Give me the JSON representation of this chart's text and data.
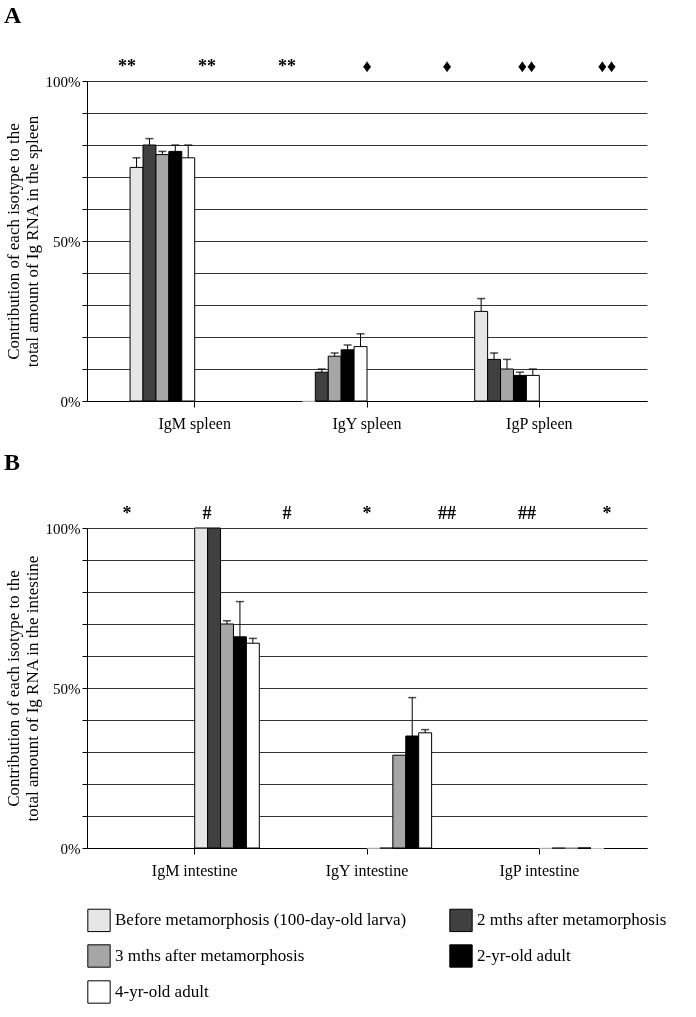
{
  "chart_data": [
    {
      "type": "bar",
      "title": "A",
      "ylabel": "Contribution of each isotype  to the total amount of Ig RNA in the spleen",
      "categories": [
        "IgM spleen",
        "IgY spleen",
        "IgP spleen"
      ],
      "series": [
        {
          "color": "#e6e6e6",
          "values": [
            73,
            0,
            28
          ],
          "errors": [
            3,
            null,
            4
          ]
        },
        {
          "color": "#404040",
          "values": [
            80,
            9,
            13
          ],
          "errors": [
            2,
            1,
            2
          ]
        },
        {
          "color": "#a6a6a6",
          "values": [
            77,
            14,
            10
          ],
          "errors": [
            1,
            1,
            3
          ]
        },
        {
          "color": "#000000",
          "values": [
            78,
            16,
            8
          ],
          "errors": [
            2,
            1.5,
            1
          ]
        },
        {
          "color": "#ffffff",
          "values": [
            76,
            17,
            8
          ],
          "errors": [
            4,
            4,
            2
          ]
        }
      ],
      "ylim": [
        0,
        100
      ],
      "yticks": [
        {
          "value": 0,
          "label": "0%"
        },
        {
          "value": 10,
          "label": null
        },
        {
          "value": 20,
          "label": null
        },
        {
          "value": 30,
          "label": null
        },
        {
          "value": 40,
          "label": null
        },
        {
          "value": 50,
          "label": "50%"
        },
        {
          "value": 60,
          "label": null
        },
        {
          "value": 70,
          "label": null
        },
        {
          "value": 80,
          "label": null
        },
        {
          "value": 90,
          "label": null
        },
        {
          "value": 100,
          "label": "100%"
        }
      ],
      "grid": "y",
      "annotations": [
        "**",
        "**",
        "**",
        "♦",
        "♦",
        "♦♦",
        "♦♦"
      ]
    },
    {
      "type": "bar",
      "title": "B",
      "ylabel": "Contribution of each isotype  to the total amount of Ig RNA in the intestine",
      "categories": [
        "IgM intestine",
        "IgY intestine",
        "IgP intestine"
      ],
      "series": [
        {
          "name": "Before metamorphosis (100-day-old larva)",
          "color": "#e6e6e6",
          "values": [
            100,
            0,
            0
          ]
        },
        {
          "name": "2 mths after metamorphosis",
          "color": "#404040",
          "values": [
            100,
            0,
            0
          ]
        },
        {
          "name": "3 mths after metamorphosis",
          "color": "#a6a6a6",
          "values": [
            70,
            29,
            0
          ],
          "errors": [
            1,
            null,
            null
          ]
        },
        {
          "name": "2-yr-old adult",
          "color": "#000000",
          "values": [
            66,
            35,
            0
          ],
          "errors": [
            11,
            12,
            null
          ]
        },
        {
          "name": "4-yr-old adult",
          "color": "#ffffff",
          "values": [
            64,
            36,
            0
          ],
          "errors": [
            1.5,
            1,
            null
          ]
        }
      ],
      "ylim": [
        0,
        100
      ],
      "yticks": [
        {
          "value": 0,
          "label": "0%"
        },
        {
          "value": 10,
          "label": null
        },
        {
          "value": 20,
          "label": null
        },
        {
          "value": 30,
          "label": null
        },
        {
          "value": 40,
          "label": null
        },
        {
          "value": 50,
          "label": "50%"
        },
        {
          "value": 60,
          "label": null
        },
        {
          "value": 70,
          "label": null
        },
        {
          "value": 80,
          "label": null
        },
        {
          "value": 90,
          "label": null
        },
        {
          "value": 100,
          "label": "100%"
        }
      ],
      "grid": "y",
      "legend": "bottom",
      "annotations": [
        "*",
        "#",
        "#",
        "*",
        "##",
        "##",
        "*"
      ]
    }
  ]
}
